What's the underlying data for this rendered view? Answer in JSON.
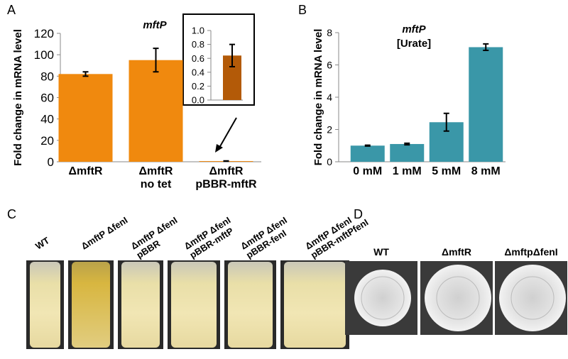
{
  "panel_labels": [
    "A",
    "B",
    "C",
    "D"
  ],
  "chart_data": [
    {
      "type": "bar",
      "title": "mftP",
      "ylabel": "Fold change in mRNA level",
      "categories": [
        "ΔmftR",
        "ΔmftR\nno tet",
        "ΔmftR\npBBR-mftR"
      ],
      "values": [
        82,
        95,
        0.64
      ],
      "errors": [
        2,
        11,
        0.16
      ],
      "color": "#f0890e",
      "ylim": [
        0,
        120
      ],
      "yticks": [
        0,
        20,
        40,
        60,
        80,
        100,
        120
      ]
    },
    {
      "type": "bar",
      "categories": [
        null
      ],
      "values": [
        0.64
      ],
      "errors": [
        0.16
      ],
      "color": "#b35a08",
      "ylim": [
        0,
        1
      ],
      "yticks": [
        {
          "value": 0,
          "label": "0.0"
        },
        0.2,
        0.4,
        0.6,
        0.8,
        {
          "value": 1,
          "label": "1.0"
        }
      ]
    },
    {
      "type": "bar",
      "title": "mftP",
      "subtitle": "[Urate]",
      "ylabel": "Fold change in mRNA level",
      "categories": [
        "0 mM",
        "1 mM",
        "5 mM",
        "8 mM"
      ],
      "values": [
        1.0,
        1.1,
        2.45,
        7.1
      ],
      "errors": [
        0.03,
        0.05,
        0.55,
        0.2
      ],
      "color": "#3a97a8",
      "ylim": [
        0,
        8
      ],
      "yticks": [
        0,
        2,
        4,
        6,
        8
      ]
    }
  ],
  "photo_c": {
    "labels": [
      "WT",
      "ΔmftP ΔfenI",
      "ΔmftP ΔfenI\npBBR",
      "ΔmftP ΔfenI\npBBR-mftP",
      "ΔmftP ΔfenI\npBBR-fenI",
      "ΔmftP ΔfenI\npBBR-mftPfenI"
    ]
  },
  "photo_d": {
    "labels": [
      "WT",
      "ΔmftR",
      "ΔmftpΔfenI"
    ]
  }
}
